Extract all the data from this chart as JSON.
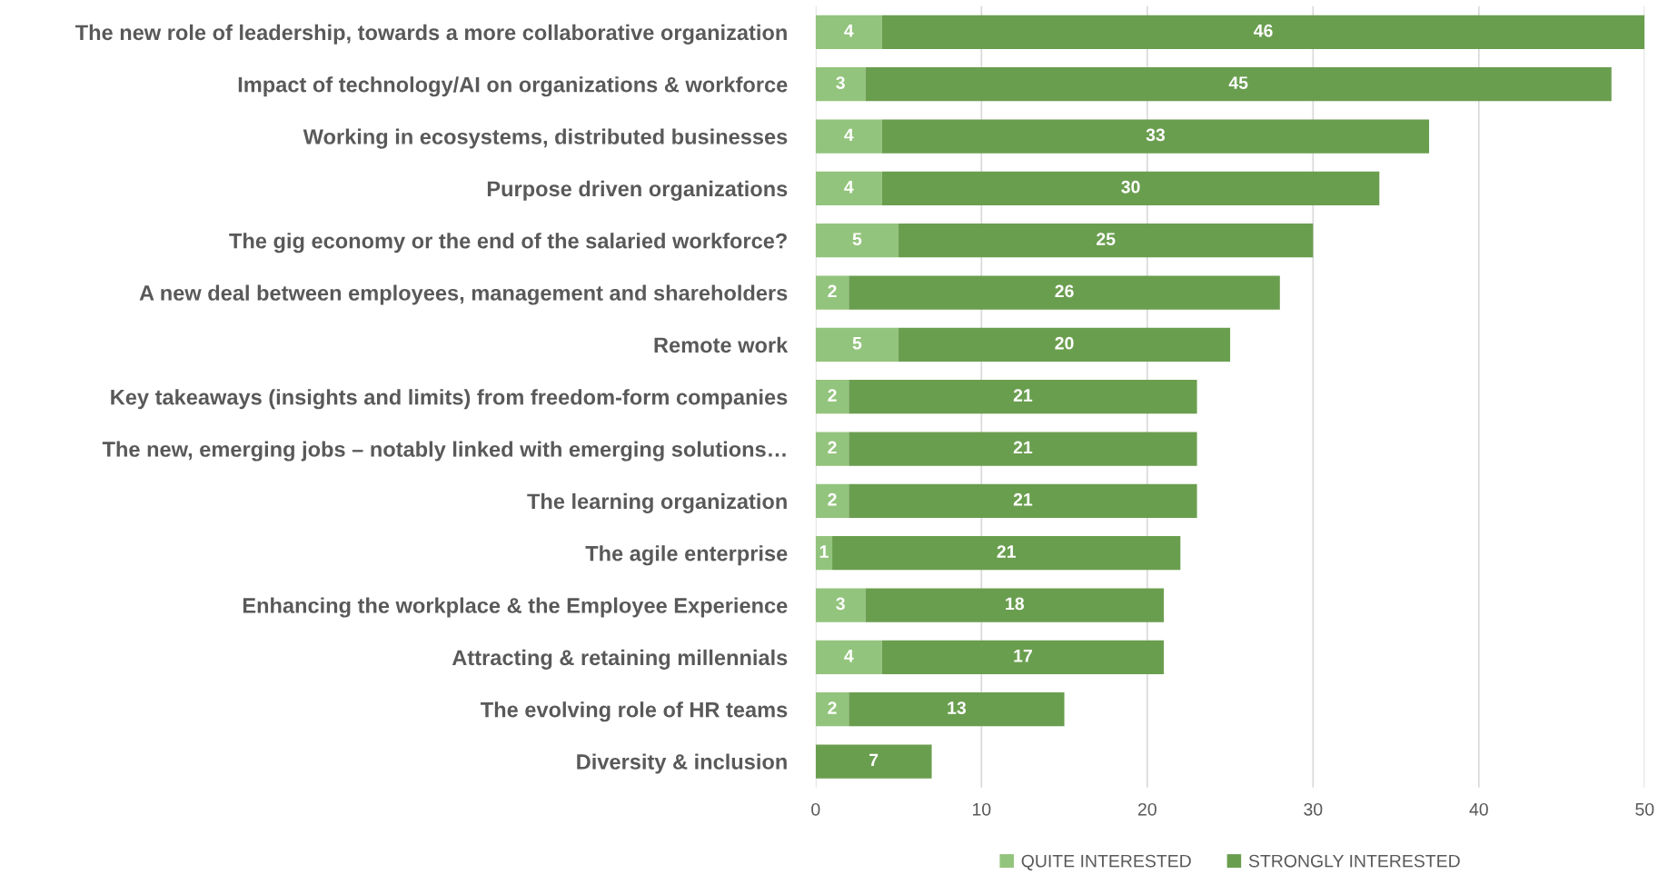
{
  "chart_data": {
    "type": "bar",
    "orientation": "horizontal",
    "stacked": true,
    "data_labels": true,
    "grid": "x",
    "legend": "bottom",
    "categories": [
      "The new role of leadership, towards a more collaborative organization",
      "Impact of technology/AI on organizations & workforce",
      "Working in ecosystems, distributed businesses",
      "Purpose driven organizations",
      "The gig economy or the end of the salaried workforce?",
      "A new deal between employees, management and shareholders",
      "Remote work",
      "Key takeaways (insights and limits) from freedom-form companies",
      "The new, emerging jobs – notably linked with emerging solutions…",
      "The learning organization",
      "The agile enterprise",
      "Enhancing the workplace & the Employee Experience",
      "Attracting & retaining millennials",
      "The evolving role of HR teams",
      "Diversity & inclusion"
    ],
    "series": [
      {
        "name": "QUITE INTERESTED",
        "color": "#93c47d",
        "values": [
          4,
          3,
          4,
          4,
          5,
          2,
          5,
          2,
          2,
          2,
          1,
          3,
          4,
          2,
          null
        ]
      },
      {
        "name": "STRONGLY INTERESTED",
        "color": "#6a9e4f",
        "values": [
          46,
          45,
          33,
          30,
          25,
          26,
          20,
          21,
          21,
          21,
          21,
          18,
          17,
          13,
          7
        ]
      }
    ],
    "xlim": [
      0,
      50
    ],
    "xticks": [
      0,
      10,
      20,
      30,
      40,
      50
    ]
  }
}
